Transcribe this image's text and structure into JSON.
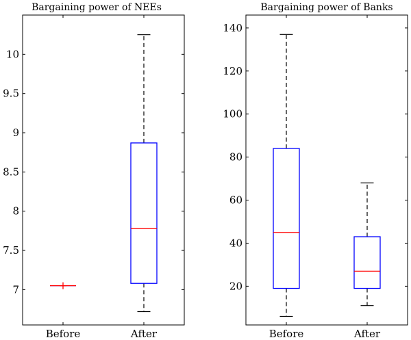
{
  "chart_data": [
    {
      "type": "box",
      "title": "Bargaining power of NEEs",
      "xlabel": "",
      "ylabel": "",
      "categories": [
        "Before",
        "After"
      ],
      "yticks": [
        "7",
        "7.5",
        "8",
        "8.5",
        "9",
        "9.5",
        "10"
      ],
      "ylim": [
        6.55,
        10.5
      ],
      "boxes": [
        {
          "category": "Before",
          "whisker_low": 7.05,
          "q1": 7.05,
          "median": 7.05,
          "q3": 7.05,
          "whisker_high": 7.05,
          "outliers": [
            7.05
          ]
        },
        {
          "category": "After",
          "whisker_low": 6.72,
          "q1": 7.08,
          "median": 7.78,
          "q3": 8.87,
          "whisker_high": 10.25,
          "outliers": []
        }
      ],
      "colors": {
        "box": "#0000ff",
        "median": "#ff0000",
        "whisker": "#000000",
        "outlier": "#ff0000"
      }
    },
    {
      "type": "box",
      "title": "Bargaining power of Banks",
      "xlabel": "",
      "ylabel": "",
      "categories": [
        "Before",
        "After"
      ],
      "yticks": [
        "20",
        "40",
        "60",
        "80",
        "100",
        "120",
        "140"
      ],
      "ylim": [
        2,
        146
      ],
      "boxes": [
        {
          "category": "Before",
          "whisker_low": 6,
          "q1": 19,
          "median": 45,
          "q3": 84,
          "whisker_high": 137,
          "outliers": []
        },
        {
          "category": "After",
          "whisker_low": 11,
          "q1": 19,
          "median": 27,
          "q3": 43,
          "whisker_high": 68,
          "outliers": []
        }
      ],
      "colors": {
        "box": "#0000ff",
        "median": "#ff0000",
        "whisker": "#000000",
        "outlier": "#ff0000"
      }
    }
  ]
}
